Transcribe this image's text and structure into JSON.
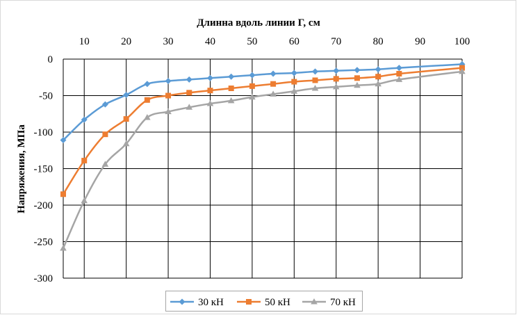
{
  "chart_data": {
    "type": "line",
    "title": "",
    "xlabel": "Длинна вдоль линии Г, см",
    "ylabel": "Напряжения, МПа",
    "x_ticks": [
      "10",
      "20",
      "30",
      "40",
      "50",
      "60",
      "70",
      "80",
      "90",
      "100"
    ],
    "y_ticks": [
      "0",
      "-50",
      "-100",
      "-150",
      "-200",
      "-250",
      "-300"
    ],
    "xlim": [
      5,
      100
    ],
    "ylim": [
      -300,
      0
    ],
    "x_axis_position": "top",
    "grid": true,
    "legend_position": "bottom",
    "x": [
      5,
      10,
      15,
      20,
      25,
      30,
      35,
      40,
      45,
      50,
      55,
      60,
      65,
      70,
      75,
      80,
      85,
      100
    ],
    "series": [
      {
        "name": "30 кН",
        "color": "#5b9bd5",
        "marker": "diamond",
        "values": [
          -111,
          -83,
          -62,
          -49,
          -34,
          -30,
          -28,
          -26,
          -24,
          -22,
          -20,
          -19,
          -17,
          -16,
          -15,
          -14,
          -12,
          -7
        ]
      },
      {
        "name": "50 кН",
        "color": "#ed7d31",
        "marker": "square",
        "values": [
          -185,
          -139,
          -103,
          -82,
          -56,
          -50,
          -46,
          -43,
          -40,
          -37,
          -34,
          -31,
          -29,
          -27,
          -26,
          -24,
          -20,
          -12
        ]
      },
      {
        "name": "70 кН",
        "color": "#a5a5a5",
        "marker": "triangle",
        "values": [
          -259,
          -194,
          -144,
          -116,
          -80,
          -72,
          -66,
          -61,
          -57,
          -52,
          -48,
          -44,
          -40,
          -38,
          -36,
          -34,
          -28,
          -17
        ]
      }
    ]
  }
}
